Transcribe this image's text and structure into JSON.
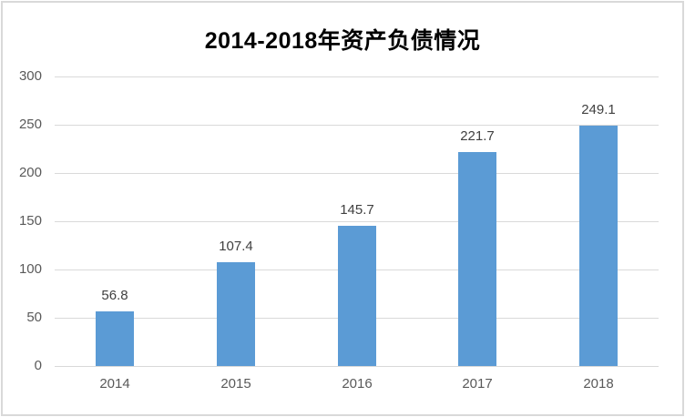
{
  "chart_data": {
    "type": "bar",
    "title": "2014-2018年资产负债情况",
    "categories": [
      "2014",
      "2015",
      "2016",
      "2017",
      "2018"
    ],
    "values": [
      56.8,
      107.4,
      145.7,
      221.7,
      249.1
    ],
    "data_labels": [
      "56.8",
      "107.4",
      "145.7",
      "221.7",
      "249.1"
    ],
    "y_ticks": [
      0,
      50,
      100,
      150,
      200,
      250,
      300
    ],
    "ylim": [
      0,
      300
    ],
    "xlabel": "",
    "ylabel": "",
    "grid": true,
    "legend": "none",
    "colors": {
      "bar": "#5B9BD5",
      "gridline": "#D9D9D9",
      "axis_label": "#595959",
      "data_label": "#404040",
      "title": "#000000",
      "frame_border": "#D9D9D9",
      "background": "#FFFFFF"
    }
  }
}
